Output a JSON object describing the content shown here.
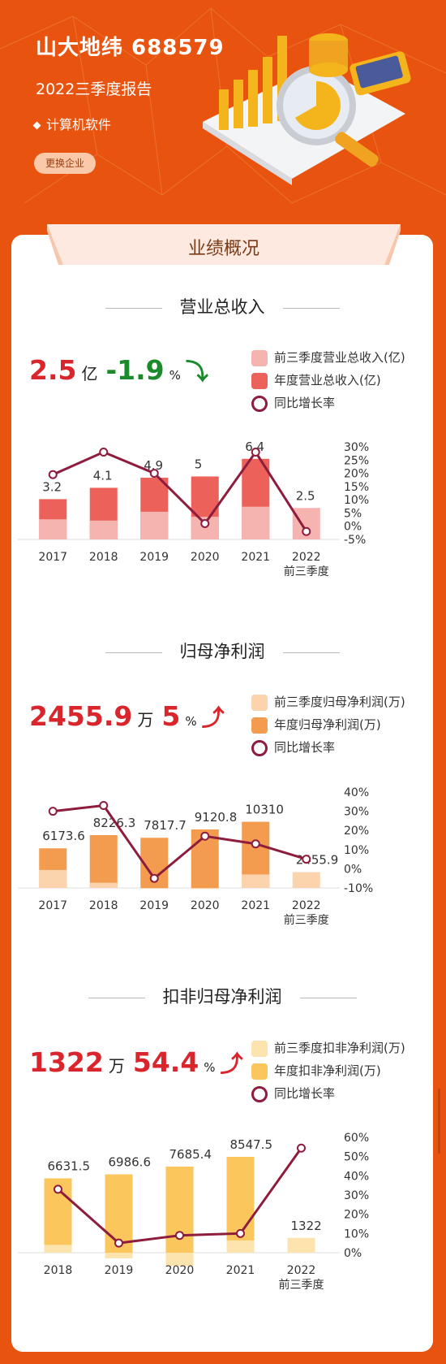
{
  "header": {
    "title": "山大地纬 688579",
    "subtitle": "2022三季度报告",
    "industry": "计算机软件",
    "change_button": "更换企业"
  },
  "card_title": "业绩概况",
  "sections": [
    {
      "id": "revenue",
      "title": "营业总收入",
      "kpi": {
        "value": "2.5",
        "unit": "亿",
        "change": "-1.9",
        "pct": "%",
        "direction": "down"
      },
      "legend": [
        "前三季度营业总收入(亿)",
        "年度营业总收入(亿)",
        "同比增长率"
      ]
    },
    {
      "id": "profit",
      "title": "归母净利润",
      "kpi": {
        "value": "2455.9",
        "unit": "万",
        "change": "5",
        "pct": "%",
        "direction": "up"
      },
      "legend": [
        "前三季度归母净利润(万)",
        "年度归母净利润(万)",
        "同比增长率"
      ]
    },
    {
      "id": "adj",
      "title": "扣非归母净利润",
      "kpi": {
        "value": "1322",
        "unit": "万",
        "change": "54.4",
        "pct": "%",
        "direction": "up"
      },
      "legend": [
        "前三季度扣非净利润(万)",
        "年度扣非净利润(万)",
        "同比增长率"
      ]
    }
  ],
  "chart_data": [
    {
      "type": "bar",
      "title": "营业总收入",
      "categories": [
        "2017",
        "2018",
        "2019",
        "2020",
        "2021",
        "2022\n前三季度"
      ],
      "series": [
        {
          "name": "前三季度营业总收入(亿)",
          "values": [
            1.6,
            1.5,
            2.2,
            1.8,
            2.6,
            2.5
          ],
          "color": "#f6b4b0"
        },
        {
          "name": "年度营业总收入(亿)",
          "values": [
            3.2,
            4.1,
            4.9,
            5,
            6.4,
            null
          ],
          "color": "#ec615a"
        },
        {
          "name": "同比增长率",
          "type": "line",
          "values": [
            19.5,
            28,
            20,
            1,
            28,
            -2
          ],
          "color": "#8e1c3d"
        }
      ],
      "data_labels": [
        "3.2",
        "4.1",
        "4.9",
        "5",
        "6.4",
        "2.5"
      ],
      "y2_ticks": [
        "30%",
        "25%",
        "20%",
        "15%",
        "10%",
        "5%",
        "0%",
        "-5%"
      ],
      "y2lim": [
        -5,
        30
      ]
    },
    {
      "type": "bar",
      "title": "归母净利润",
      "categories": [
        "2017",
        "2018",
        "2019",
        "2020",
        "2021",
        "2022\n前三季度"
      ],
      "series": [
        {
          "name": "前三季度归母净利润(万)",
          "values": [
            2800,
            800,
            -50,
            -150,
            2100,
            2455.9
          ],
          "color": "#fbd3ad"
        },
        {
          "name": "年度归母净利润(万)",
          "values": [
            6173.6,
            8226.3,
            7817.7,
            9120.8,
            10310,
            null
          ],
          "color": "#f39c4f"
        },
        {
          "name": "同比增长率",
          "type": "line",
          "values": [
            30,
            33,
            -5,
            17,
            13,
            5
          ],
          "color": "#8e1c3d"
        }
      ],
      "data_labels": [
        "6173.6",
        "8226.3",
        "7817.7",
        "9120.8",
        "10310",
        "2455.9"
      ],
      "y2_ticks": [
        "40%",
        "30%",
        "20%",
        "10%",
        "0%",
        "-10%"
      ],
      "y2lim": [
        -10,
        40
      ]
    },
    {
      "type": "bar",
      "title": "扣非归母净利润",
      "categories": [
        "2018",
        "2019",
        "2020",
        "2021",
        "2022\n前三季度"
      ],
      "series": [
        {
          "name": "前三季度扣非净利润(万)",
          "values": [
            700,
            -500,
            -1200,
            1100,
            1322
          ],
          "color": "#fde3ae"
        },
        {
          "name": "年度扣非净利润(万)",
          "values": [
            6631.5,
            6986.6,
            7685.4,
            8547.5,
            null
          ],
          "color": "#fbc65b"
        },
        {
          "name": "同比增长率",
          "type": "line",
          "values": [
            33,
            5,
            9,
            10,
            54.4
          ],
          "color": "#8e1c3d"
        }
      ],
      "data_labels": [
        "6631.5",
        "6986.6",
        "7685.4",
        "8547.5",
        "1322"
      ],
      "y2_ticks": [
        "60%",
        "50%",
        "40%",
        "30%",
        "20%",
        "10%",
        "0%"
      ],
      "y2lim": [
        0,
        60
      ]
    }
  ]
}
